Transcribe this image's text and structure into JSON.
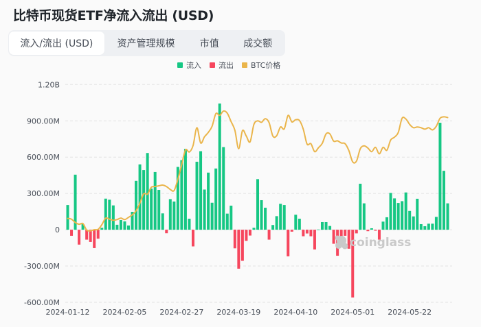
{
  "header": {
    "title": "比特币现货ETF净流入流出 (USD)"
  },
  "tabs": [
    {
      "label": "流入/流出 (USD)",
      "active": true
    },
    {
      "label": "资产管理规模",
      "active": false
    },
    {
      "label": "市值",
      "active": false
    },
    {
      "label": "成交额",
      "active": false
    }
  ],
  "legend": [
    {
      "label": "流入",
      "color": "#16c784",
      "icon": "square"
    },
    {
      "label": "流出",
      "color": "#f6465d",
      "icon": "square"
    },
    {
      "label": "BTC价格",
      "color": "#eab54b",
      "icon": "square"
    }
  ],
  "watermark": {
    "text": "coinglass",
    "icon": "coinglass-logo-icon"
  },
  "chart_data": {
    "type": "bar",
    "title": "比特币现货ETF净流入流出 (USD)",
    "xlabel": "",
    "ylabel": "",
    "ylim": [
      -600,
      1200
    ],
    "y_unit": "M USD",
    "yticks": [
      -600,
      -300,
      0,
      300,
      600,
      900,
      1200
    ],
    "ytick_labels": [
      "-600.00M",
      "-300.00M",
      "0",
      "300.00M",
      "600.00M",
      "900.00M",
      "1.20B"
    ],
    "xtick_indices": [
      0,
      15,
      30,
      45,
      60,
      75,
      90
    ],
    "xtick_labels": [
      "2024-01-12",
      "2024-02-05",
      "2024-02-27",
      "2024-03-19",
      "2024-04-10",
      "2024-05-01",
      "2024-05-22"
    ],
    "grid": true,
    "legend_position": "top",
    "y2lim": [
      20000,
      80000
    ],
    "categories": [
      "2024-01-12",
      "2024-01-16",
      "2024-01-17",
      "2024-01-18",
      "2024-01-19",
      "2024-01-22",
      "2024-01-23",
      "2024-01-24",
      "2024-01-25",
      "2024-01-26",
      "2024-01-29",
      "2024-01-30",
      "2024-01-31",
      "2024-02-01",
      "2024-02-02",
      "2024-02-05",
      "2024-02-06",
      "2024-02-07",
      "2024-02-08",
      "2024-02-09",
      "2024-02-12",
      "2024-02-13",
      "2024-02-14",
      "2024-02-15",
      "2024-02-16",
      "2024-02-20",
      "2024-02-21",
      "2024-02-22",
      "2024-02-23",
      "2024-02-26",
      "2024-02-27",
      "2024-02-28",
      "2024-02-29",
      "2024-03-01",
      "2024-03-04",
      "2024-03-05",
      "2024-03-06",
      "2024-03-07",
      "2024-03-08",
      "2024-03-11",
      "2024-03-12",
      "2024-03-13",
      "2024-03-14",
      "2024-03-15",
      "2024-03-18",
      "2024-03-19",
      "2024-03-20",
      "2024-03-21",
      "2024-03-22",
      "2024-03-25",
      "2024-03-26",
      "2024-03-27",
      "2024-03-28",
      "2024-04-01",
      "2024-04-02",
      "2024-04-03",
      "2024-04-04",
      "2024-04-05",
      "2024-04-08",
      "2024-04-09",
      "2024-04-10",
      "2024-04-11",
      "2024-04-12",
      "2024-04-15",
      "2024-04-16",
      "2024-04-17",
      "2024-04-18",
      "2024-04-19",
      "2024-04-22",
      "2024-04-23",
      "2024-04-24",
      "2024-04-25",
      "2024-04-26",
      "2024-04-29",
      "2024-04-30",
      "2024-05-01",
      "2024-05-02",
      "2024-05-03",
      "2024-05-06",
      "2024-05-07",
      "2024-05-08",
      "2024-05-09",
      "2024-05-10",
      "2024-05-13",
      "2024-05-14",
      "2024-05-15",
      "2024-05-16",
      "2024-05-17",
      "2024-05-20",
      "2024-05-21",
      "2024-05-22",
      "2024-05-23",
      "2024-05-24",
      "2024-05-28",
      "2024-05-29",
      "2024-05-30",
      "2024-05-31",
      "2024-06-03",
      "2024-06-04",
      "2024-06-05",
      "2024-06-06"
    ],
    "series": [
      {
        "name": "净流入/流出 (M USD)",
        "type": "bar",
        "positive_color": "#16c784",
        "negative_color": "#f6465d",
        "values": [
          204,
          -50,
          455,
          -123,
          46,
          -82,
          -101,
          -152,
          -74,
          16,
          257,
          248,
          201,
          41,
          80,
          69,
          35,
          148,
          404,
          540,
          493,
          634,
          340,
          477,
          329,
          135,
          -29,
          253,
          233,
          519,
          575,
          668,
          91,
          -138,
          562,
          649,
          332,
          472,
          223,
          506,
          1043,
          683,
          133,
          199,
          -154,
          -322,
          -257,
          -92,
          -48,
          16,
          418,
          244,
          182,
          -82,
          39,
          112,
          214,
          204,
          -220,
          -16,
          124,
          91,
          -54,
          -31,
          -54,
          -163,
          2,
          63,
          63,
          31,
          -116,
          -215,
          -85,
          -50,
          -157,
          -560,
          -30,
          380,
          218,
          -12,
          12,
          -8,
          -82,
          67,
          103,
          304,
          259,
          221,
          236,
          308,
          155,
          110,
          256,
          46,
          29,
          50,
          50,
          106,
          884,
          487,
          218
        ]
      },
      {
        "name": "BTC价格",
        "type": "line",
        "color": "#eab54b",
        "axis": "hidden-secondary",
        "values": [
          43100,
          42900,
          42000,
          41500,
          41700,
          39900,
          39700,
          40000,
          40100,
          41400,
          43200,
          42900,
          42600,
          42800,
          43200,
          42800,
          43400,
          44100,
          45200,
          47300,
          49900,
          49800,
          51700,
          51900,
          52100,
          52300,
          51900,
          51100,
          50800,
          53900,
          57900,
          62000,
          61400,
          63200,
          68100,
          63900,
          65600,
          66800,
          68500,
          72000,
          71500,
          72700,
          72100,
          69800,
          67400,
          62300,
          67300,
          65800,
          64200,
          69000,
          70000,
          69600,
          70600,
          69500,
          65800,
          65900,
          68300,
          67800,
          71500,
          69700,
          70300,
          70100,
          67700,
          63600,
          63700,
          61500,
          62600,
          63800,
          66400,
          66400,
          64400,
          64500,
          63900,
          63700,
          61800,
          58700,
          58900,
          62300,
          63100,
          62500,
          61500,
          62700,
          60900,
          62700,
          61900,
          64700,
          65500,
          66800,
          70700,
          70500,
          69000,
          68100,
          68300,
          68100,
          67700,
          68100,
          67500,
          68500,
          70700,
          71100,
          70900
        ]
      }
    ]
  }
}
